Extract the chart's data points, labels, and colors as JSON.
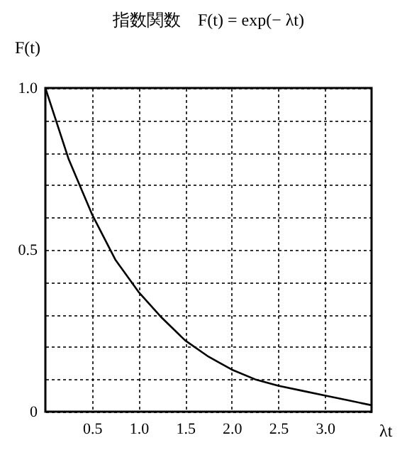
{
  "chart_data": {
    "type": "line",
    "title": "指数関数　F(t) = exp(− λt)",
    "xlabel": "λt",
    "ylabel": "F(t)",
    "x": [
      0,
      0.25,
      0.5,
      0.75,
      1.0,
      1.25,
      1.5,
      1.75,
      2.0,
      2.25,
      2.5,
      2.75,
      3.0,
      3.25,
      3.5
    ],
    "series": [
      {
        "color": "#000000",
        "values": [
          1.0,
          0.78,
          0.61,
          0.47,
          0.37,
          0.29,
          0.22,
          0.17,
          0.13,
          0.1,
          0.08,
          0.065,
          0.05,
          0.035,
          0.02
        ]
      }
    ],
    "xlim": [
      0,
      3.5
    ],
    "ylim": [
      0,
      1
    ],
    "xticks": [
      0.5,
      {
        "value": 1,
        "label": "1.0"
      },
      1.5,
      {
        "value": 2,
        "label": "2.0"
      },
      2.5,
      {
        "value": 3,
        "label": "3.0"
      }
    ],
    "yticks": [
      0,
      {
        "value": 0.1,
        "label": null
      },
      {
        "value": 0.2,
        "label": null
      },
      {
        "value": 0.3,
        "label": null
      },
      {
        "value": 0.4,
        "label": null
      },
      0.5,
      {
        "value": 0.6,
        "label": null
      },
      {
        "value": 0.7,
        "label": null
      },
      {
        "value": 0.8,
        "label": null
      },
      {
        "value": 0.9,
        "label": null
      },
      {
        "value": 1,
        "label": "1.0"
      }
    ],
    "grid": true
  }
}
